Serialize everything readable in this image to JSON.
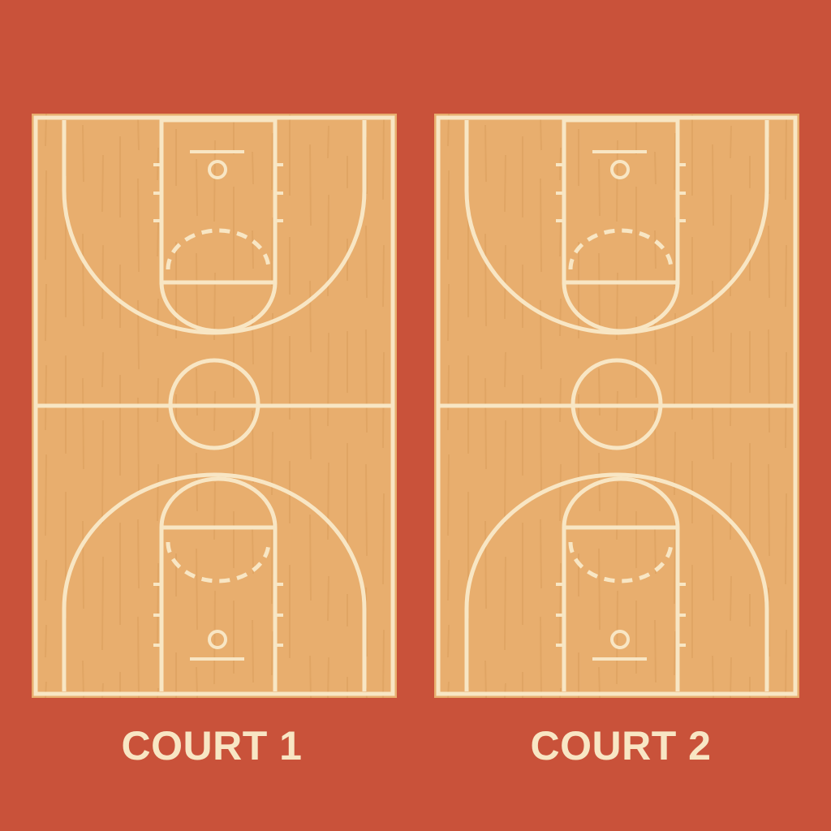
{
  "colors": {
    "background": "#c9523a",
    "wood": "#e8ae6e",
    "wood_grain": "#d89b5a",
    "line": "#f8e6c4",
    "label": "#f8e6c4"
  },
  "courts": [
    {
      "label": "COURT 1"
    },
    {
      "label": "COURT 2"
    }
  ]
}
